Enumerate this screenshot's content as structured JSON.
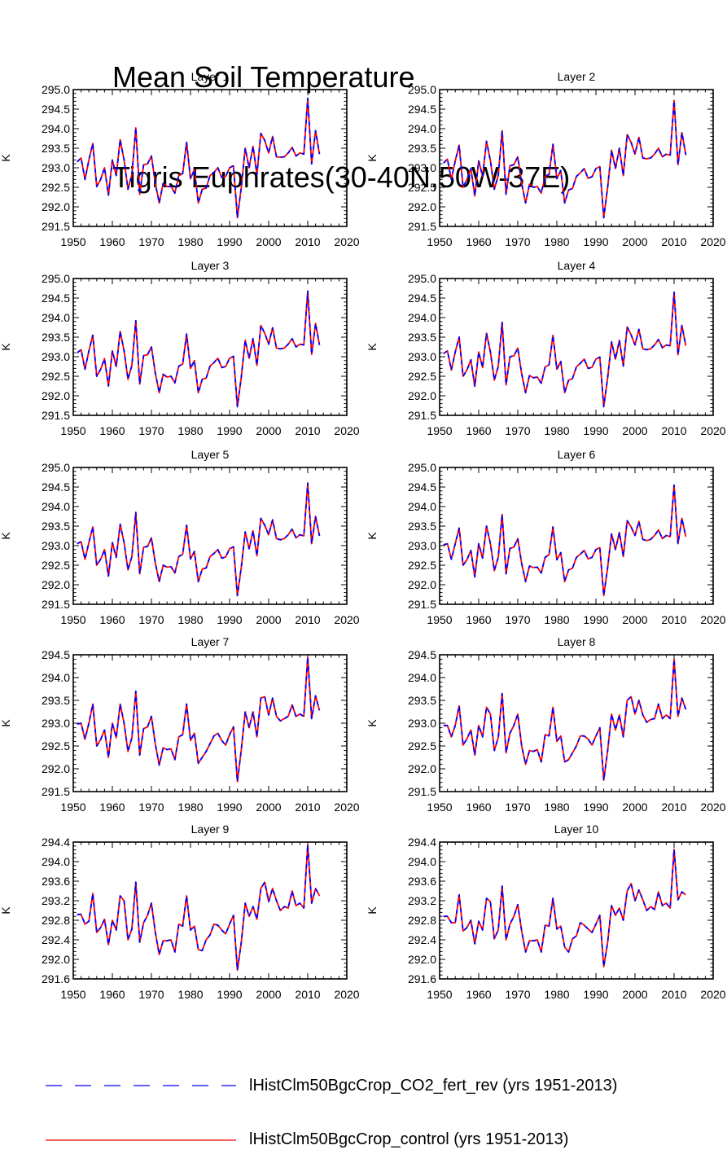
{
  "title": {
    "line1": "Mean Soil Temperature",
    "line2": "Tigris Euphrates(30-40N,50W-37E)"
  },
  "legend": [
    {
      "name": "lHistClm50BgcCrop_CO2_fert_rev (yrs 1951-2013)",
      "color": "#0000ff",
      "style": "dashed"
    },
    {
      "name": "lHistClm50BgcCrop_control (yrs 1951-2013)",
      "color": "#ff0000",
      "style": "solid"
    }
  ],
  "chart_data": [
    {
      "type": "line",
      "title": "Layer 1",
      "ylabel": "K",
      "xlim": [
        1950,
        2020
      ],
      "ylim": [
        291.5,
        295.0
      ],
      "xticks": [
        1950,
        1960,
        1970,
        1980,
        1990,
        2000,
        2010,
        2020
      ],
      "yticks": [
        291.5,
        292.0,
        292.5,
        293.0,
        293.5,
        294.0,
        294.5,
        295.0
      ],
      "ytick_decimals": 1,
      "x_start": 1951,
      "series": [
        {
          "name": "lHistClm50BgcCrop_CO2_fert_rev (yrs 1951-2013)",
          "values": [
            293.15,
            293.25,
            292.7,
            293.2,
            293.62,
            292.52,
            292.7,
            293.0,
            292.3,
            293.2,
            292.8,
            293.72,
            293.2,
            292.45,
            292.82,
            294.02,
            292.32,
            293.08,
            293.1,
            293.3,
            292.6,
            292.1,
            292.6,
            292.52,
            292.52,
            292.35,
            292.8,
            292.85,
            293.65,
            292.72,
            292.95,
            292.1,
            292.45,
            292.48,
            292.8,
            292.88,
            293.0,
            292.75,
            292.78,
            293.0,
            293.05,
            291.72,
            292.5,
            293.5,
            293.0,
            293.55,
            292.82,
            293.88,
            293.7,
            293.38,
            293.8,
            293.28,
            293.27,
            293.28,
            293.38,
            293.52,
            293.3,
            293.38,
            293.35,
            294.78,
            293.1,
            293.95,
            293.35
          ]
        }
      ]
    },
    {
      "type": "line",
      "title": "Layer 2",
      "ylabel": "K",
      "xlim": [
        1950,
        2020
      ],
      "ylim": [
        291.5,
        295.0
      ],
      "xticks": [
        1950,
        1960,
        1970,
        1980,
        1990,
        2000,
        2010,
        2020
      ],
      "yticks": [
        291.5,
        292.0,
        292.5,
        293.0,
        293.5,
        294.0,
        294.5,
        295.0
      ],
      "ytick_decimals": 1,
      "x_start": 1951,
      "series": [
        {
          "name": "lHistClm50BgcCrop_CO2_fert_rev (yrs 1951-2013)",
          "values": [
            293.12,
            293.22,
            292.7,
            293.18,
            293.58,
            292.5,
            292.7,
            292.98,
            292.28,
            293.18,
            292.78,
            293.68,
            293.18,
            292.45,
            292.8,
            293.95,
            292.32,
            293.05,
            293.08,
            293.28,
            292.6,
            292.1,
            292.58,
            292.5,
            292.52,
            292.35,
            292.78,
            292.83,
            293.6,
            292.72,
            292.93,
            292.1,
            292.43,
            292.47,
            292.78,
            292.87,
            292.98,
            292.73,
            292.77,
            292.98,
            293.03,
            291.72,
            292.5,
            293.45,
            292.98,
            293.5,
            292.8,
            293.85,
            293.65,
            293.35,
            293.78,
            293.25,
            293.23,
            293.25,
            293.35,
            293.5,
            293.28,
            293.35,
            293.32,
            294.72,
            293.08,
            293.9,
            293.33
          ]
        }
      ]
    },
    {
      "type": "line",
      "title": "Layer 3",
      "ylabel": "K",
      "xlim": [
        1950,
        2020
      ],
      "ylim": [
        291.5,
        295.0
      ],
      "xticks": [
        1950,
        1960,
        1970,
        1980,
        1990,
        2000,
        2010,
        2020
      ],
      "yticks": [
        291.5,
        292.0,
        292.5,
        293.0,
        293.5,
        294.0,
        294.5,
        295.0
      ],
      "ytick_decimals": 1,
      "x_start": 1951,
      "series": [
        {
          "name": "lHistClm50BgcCrop_CO2_fert_rev (yrs 1951-2013)",
          "values": [
            293.1,
            293.18,
            292.68,
            293.15,
            293.55,
            292.5,
            292.68,
            292.95,
            292.25,
            293.15,
            292.75,
            293.65,
            293.15,
            292.42,
            292.78,
            293.92,
            292.3,
            293.03,
            293.05,
            293.25,
            292.58,
            292.08,
            292.55,
            292.48,
            292.5,
            292.33,
            292.76,
            292.81,
            293.58,
            292.7,
            292.9,
            292.08,
            292.42,
            292.45,
            292.76,
            292.85,
            292.96,
            292.72,
            292.75,
            292.96,
            293.01,
            291.72,
            292.48,
            293.42,
            292.96,
            293.46,
            292.78,
            293.8,
            293.6,
            293.32,
            293.74,
            293.22,
            293.2,
            293.22,
            293.32,
            293.46,
            293.25,
            293.32,
            293.3,
            294.68,
            293.06,
            293.85,
            293.3
          ]
        }
      ]
    },
    {
      "type": "line",
      "title": "Layer 4",
      "ylabel": "K",
      "xlim": [
        1950,
        2020
      ],
      "ylim": [
        291.5,
        295.0
      ],
      "xticks": [
        1950,
        1960,
        1970,
        1980,
        1990,
        2000,
        2010,
        2020
      ],
      "yticks": [
        291.5,
        292.0,
        292.5,
        293.0,
        293.5,
        294.0,
        294.5,
        295.0
      ],
      "ytick_decimals": 1,
      "x_start": 1951,
      "series": [
        {
          "name": "lHistClm50BgcCrop_CO2_fert_rev (yrs 1951-2013)",
          "values": [
            293.08,
            293.15,
            292.66,
            293.12,
            293.5,
            292.5,
            292.66,
            292.92,
            292.24,
            293.12,
            292.72,
            293.6,
            293.12,
            292.4,
            292.75,
            293.88,
            292.28,
            293.0,
            293.02,
            293.22,
            292.56,
            292.08,
            292.52,
            292.46,
            292.48,
            292.32,
            292.74,
            292.79,
            293.55,
            292.68,
            292.88,
            292.08,
            292.4,
            292.44,
            292.74,
            292.83,
            292.94,
            292.7,
            292.73,
            292.94,
            292.99,
            291.72,
            292.46,
            293.38,
            292.94,
            293.42,
            292.76,
            293.76,
            293.56,
            293.3,
            293.7,
            293.2,
            293.18,
            293.2,
            293.3,
            293.44,
            293.23,
            293.3,
            293.28,
            294.65,
            293.05,
            293.8,
            293.28
          ]
        }
      ]
    },
    {
      "type": "line",
      "title": "Layer 5",
      "ylabel": "K",
      "xlim": [
        1950,
        2020
      ],
      "ylim": [
        291.5,
        295.0
      ],
      "xticks": [
        1950,
        1960,
        1970,
        1980,
        1990,
        2000,
        2010,
        2020
      ],
      "yticks": [
        291.5,
        292.0,
        292.5,
        293.0,
        293.5,
        294.0,
        294.5,
        295.0
      ],
      "ytick_decimals": 1,
      "x_start": 1951,
      "series": [
        {
          "name": "lHistClm50BgcCrop_CO2_fert_rev (yrs 1951-2013)",
          "values": [
            293.05,
            293.1,
            292.65,
            293.08,
            293.48,
            292.5,
            292.65,
            292.9,
            292.22,
            293.08,
            292.7,
            293.55,
            293.08,
            292.38,
            292.72,
            293.85,
            292.28,
            292.96,
            292.98,
            293.2,
            292.55,
            292.08,
            292.5,
            292.45,
            292.46,
            292.3,
            292.72,
            292.78,
            293.52,
            292.66,
            292.85,
            292.08,
            292.4,
            292.43,
            292.72,
            292.8,
            292.9,
            292.68,
            292.71,
            292.92,
            292.97,
            291.72,
            292.45,
            293.35,
            292.92,
            293.38,
            292.74,
            293.7,
            293.52,
            293.28,
            293.66,
            293.18,
            293.15,
            293.18,
            293.28,
            293.42,
            293.2,
            293.28,
            293.25,
            294.6,
            293.05,
            293.75,
            293.25
          ]
        }
      ]
    },
    {
      "type": "line",
      "title": "Layer 6",
      "ylabel": "K",
      "xlim": [
        1950,
        2020
      ],
      "ylim": [
        291.5,
        295.0
      ],
      "xticks": [
        1950,
        1960,
        1970,
        1980,
        1990,
        2000,
        2010,
        2020
      ],
      "yticks": [
        291.5,
        292.0,
        292.5,
        293.0,
        293.5,
        294.0,
        294.5,
        295.0
      ],
      "ytick_decimals": 1,
      "x_start": 1951,
      "series": [
        {
          "name": "lHistClm50BgcCrop_CO2_fert_rev (yrs 1951-2013)",
          "values": [
            293.02,
            293.05,
            292.65,
            293.05,
            293.45,
            292.5,
            292.64,
            292.88,
            292.2,
            293.05,
            292.68,
            293.5,
            293.05,
            292.36,
            292.7,
            293.8,
            292.28,
            292.93,
            292.96,
            293.18,
            292.54,
            292.08,
            292.48,
            292.44,
            292.45,
            292.3,
            292.7,
            292.77,
            293.48,
            292.64,
            292.82,
            292.08,
            292.38,
            292.42,
            292.7,
            292.78,
            292.88,
            292.66,
            292.7,
            292.9,
            292.95,
            291.72,
            292.44,
            293.3,
            292.9,
            293.34,
            292.72,
            293.64,
            293.48,
            293.26,
            293.62,
            293.16,
            293.13,
            293.16,
            293.26,
            293.4,
            293.18,
            293.26,
            293.23,
            294.55,
            293.05,
            293.7,
            293.23
          ]
        }
      ]
    },
    {
      "type": "line",
      "title": "Layer 7",
      "ylabel": "K",
      "xlim": [
        1950,
        2020
      ],
      "ylim": [
        291.5,
        294.5
      ],
      "xticks": [
        1950,
        1960,
        1970,
        1980,
        1990,
        2000,
        2010,
        2020
      ],
      "yticks": [
        291.5,
        292.0,
        292.5,
        293.0,
        293.5,
        294.0,
        294.5
      ],
      "ytick_decimals": 1,
      "x_start": 1951,
      "series": [
        {
          "name": "lHistClm50BgcCrop_CO2_fert_rev (yrs 1951-2013)",
          "values": [
            292.98,
            293.0,
            292.65,
            293.0,
            293.42,
            292.5,
            292.64,
            292.85,
            292.25,
            293.0,
            292.68,
            293.42,
            293.0,
            292.38,
            292.68,
            293.7,
            292.3,
            292.88,
            292.92,
            293.15,
            292.54,
            292.08,
            292.46,
            292.42,
            292.44,
            292.2,
            292.7,
            292.75,
            293.42,
            292.62,
            292.78,
            292.12,
            292.25,
            292.38,
            292.55,
            292.72,
            292.78,
            292.62,
            292.52,
            292.75,
            292.92,
            291.72,
            292.42,
            293.25,
            292.9,
            293.25,
            292.7,
            293.55,
            293.58,
            293.18,
            293.55,
            293.15,
            293.05,
            293.1,
            293.15,
            293.4,
            293.15,
            293.2,
            293.15,
            294.45,
            293.1,
            293.6,
            293.28
          ]
        }
      ]
    },
    {
      "type": "line",
      "title": "Layer 8",
      "ylabel": "K",
      "xlim": [
        1950,
        2020
      ],
      "ylim": [
        291.5,
        294.5
      ],
      "xticks": [
        1950,
        1960,
        1970,
        1980,
        1990,
        2000,
        2010,
        2020
      ],
      "yticks": [
        291.5,
        292.0,
        292.5,
        293.0,
        293.5,
        294.0,
        294.5
      ],
      "ytick_decimals": 1,
      "x_start": 1951,
      "series": [
        {
          "name": "lHistClm50BgcCrop_CO2_fert_rev (yrs 1951-2013)",
          "values": [
            292.95,
            292.95,
            292.7,
            292.95,
            293.38,
            292.52,
            292.66,
            292.85,
            292.3,
            292.95,
            292.7,
            293.35,
            293.2,
            292.4,
            292.68,
            293.65,
            292.35,
            292.78,
            292.95,
            293.2,
            292.5,
            292.1,
            292.4,
            292.38,
            292.42,
            292.15,
            292.75,
            292.72,
            293.35,
            292.6,
            292.72,
            292.15,
            292.2,
            292.35,
            292.5,
            292.72,
            292.72,
            292.65,
            292.52,
            292.72,
            292.9,
            291.75,
            292.4,
            293.2,
            292.85,
            293.18,
            292.7,
            293.5,
            293.58,
            293.2,
            293.5,
            293.18,
            293.02,
            293.08,
            293.1,
            293.42,
            293.1,
            293.18,
            293.1,
            294.4,
            293.15,
            293.55,
            293.3
          ]
        }
      ]
    },
    {
      "type": "line",
      "title": "Layer 9",
      "ylabel": "K",
      "xlim": [
        1950,
        2020
      ],
      "ylim": [
        291.6,
        294.4
      ],
      "xticks": [
        1950,
        1960,
        1970,
        1980,
        1990,
        2000,
        2010,
        2020
      ],
      "yticks": [
        291.6,
        292.0,
        292.4,
        292.8,
        293.2,
        293.6,
        294.0,
        294.4
      ],
      "ytick_decimals": 1,
      "x_start": 1951,
      "series": [
        {
          "name": "lHistClm50BgcCrop_CO2_fert_rev (yrs 1951-2013)",
          "values": [
            292.92,
            292.92,
            292.72,
            292.78,
            293.35,
            292.55,
            292.65,
            292.82,
            292.3,
            292.8,
            292.6,
            293.3,
            293.2,
            292.4,
            292.62,
            293.58,
            292.35,
            292.75,
            292.9,
            293.15,
            292.55,
            292.1,
            292.38,
            292.38,
            292.4,
            292.15,
            292.72,
            292.68,
            293.3,
            292.6,
            292.68,
            292.2,
            292.18,
            292.4,
            292.5,
            292.72,
            292.7,
            292.6,
            292.52,
            292.72,
            292.9,
            291.78,
            292.35,
            293.15,
            292.88,
            293.08,
            292.82,
            293.45,
            293.58,
            293.18,
            293.45,
            293.2,
            293.0,
            293.08,
            293.05,
            293.4,
            293.1,
            293.15,
            293.05,
            294.35,
            293.15,
            293.45,
            293.3
          ]
        }
      ]
    },
    {
      "type": "line",
      "title": "Layer 10",
      "ylabel": "K",
      "xlim": [
        1950,
        2020
      ],
      "ylim": [
        291.6,
        294.4
      ],
      "xticks": [
        1950,
        1960,
        1970,
        1980,
        1990,
        2000,
        2010,
        2020
      ],
      "yticks": [
        291.6,
        292.0,
        292.4,
        292.8,
        293.2,
        293.6,
        294.0,
        294.4
      ],
      "ytick_decimals": 1,
      "x_start": 1951,
      "series": [
        {
          "name": "lHistClm50BgcCrop_CO2_fert_rev (yrs 1951-2013)",
          "values": [
            292.88,
            292.88,
            292.75,
            292.75,
            293.32,
            292.58,
            292.65,
            292.8,
            292.32,
            292.78,
            292.6,
            293.25,
            293.18,
            292.42,
            292.6,
            293.5,
            292.4,
            292.72,
            292.88,
            293.12,
            292.58,
            292.15,
            292.38,
            292.38,
            292.4,
            292.15,
            292.7,
            292.68,
            293.25,
            292.62,
            292.68,
            292.25,
            292.15,
            292.42,
            292.48,
            292.75,
            292.7,
            292.62,
            292.55,
            292.72,
            292.9,
            291.85,
            292.35,
            293.1,
            292.9,
            293.05,
            292.8,
            293.4,
            293.55,
            293.2,
            293.42,
            293.22,
            293.0,
            293.08,
            293.02,
            293.38,
            293.1,
            293.15,
            293.05,
            294.25,
            293.22,
            293.38,
            293.32
          ]
        }
      ]
    }
  ]
}
